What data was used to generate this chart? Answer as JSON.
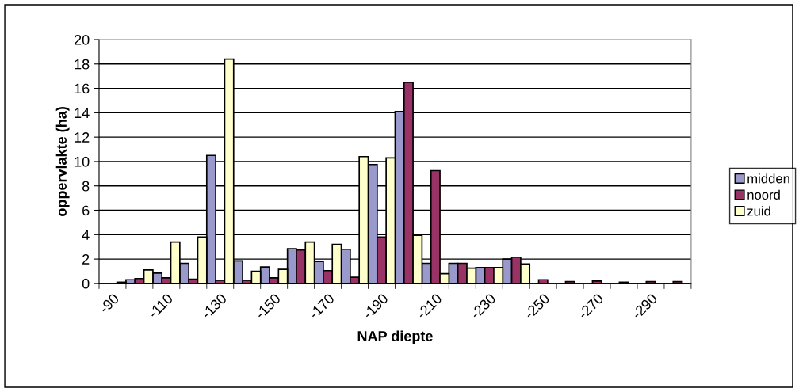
{
  "chart_data": {
    "type": "bar",
    "xlabel": "NAP diepte",
    "ylabel": "oppervlakte (ha)",
    "categories": [
      "-90",
      null,
      "-110",
      null,
      "-130",
      null,
      "-150",
      null,
      "-170",
      null,
      "-190",
      null,
      "-210",
      null,
      "-230",
      null,
      "-250",
      null,
      "-270",
      null,
      "-290",
      null
    ],
    "series": [
      {
        "name": "midden",
        "color": "#9999cc",
        "values": [
          null,
          0.3,
          0.85,
          1.65,
          10.5,
          1.85,
          1.35,
          2.85,
          1.8,
          2.8,
          9.75,
          14.1,
          1.65,
          1.65,
          1.3,
          2.0,
          null,
          null,
          null,
          null,
          null,
          null
        ]
      },
      {
        "name": "noord",
        "color": "#993366",
        "values": [
          null,
          0.4,
          0.45,
          0.35,
          0.25,
          0.25,
          0.45,
          2.75,
          1.05,
          0.5,
          3.8,
          16.5,
          9.25,
          1.65,
          1.3,
          2.15,
          0.3,
          0.15,
          0.2,
          0.1,
          0.15,
          0.15
        ]
      },
      {
        "name": "zuid",
        "color": "#ffffcc",
        "values": [
          0.1,
          1.1,
          3.4,
          3.8,
          18.4,
          1.0,
          1.15,
          3.4,
          3.2,
          10.4,
          10.3,
          3.95,
          0.8,
          1.25,
          1.3,
          1.6,
          null,
          null,
          null,
          null,
          null,
          null
        ]
      }
    ],
    "ylim": [
      0,
      20
    ],
    "yticks": [
      0,
      2,
      4,
      6,
      8,
      10,
      12,
      14,
      16,
      18,
      20
    ],
    "grid": "y",
    "legend": "right"
  }
}
